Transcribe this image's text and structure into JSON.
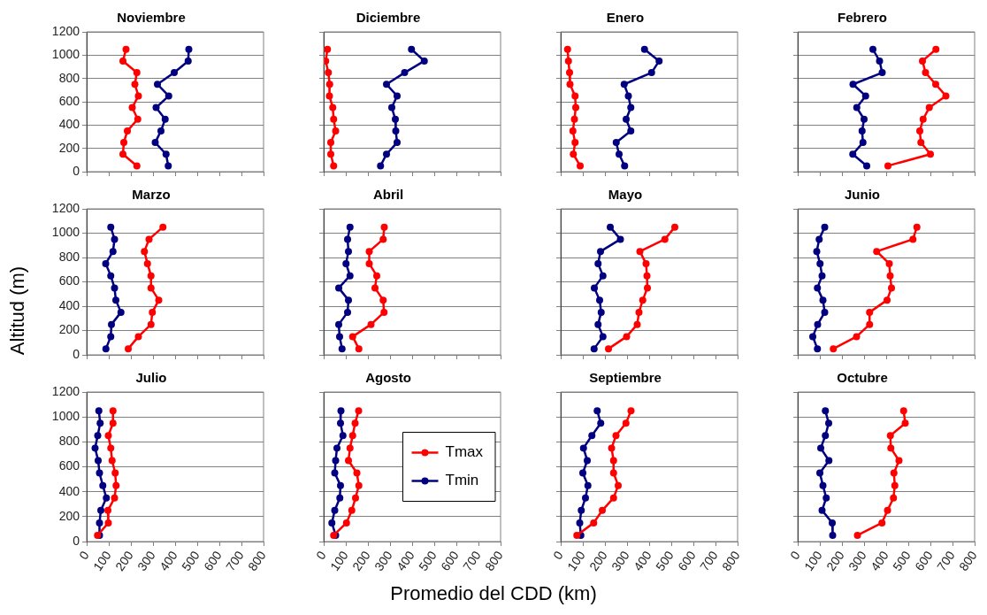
{
  "chart_data": [
    {
      "type": "line",
      "title": "Noviembre",
      "xlim": [
        0,
        800
      ],
      "xticks": [
        0,
        100,
        200,
        300,
        400,
        500,
        600,
        700,
        800
      ],
      "ylim": [
        0,
        1200
      ],
      "yticks": [
        0,
        200,
        400,
        600,
        800,
        1000,
        1200
      ],
      "grid": "y",
      "tick_labels": "y",
      "marker": "circle",
      "line_style": "solid",
      "series": [
        {
          "color": "#ff0000",
          "x": [
            178,
            164,
            227,
            218,
            234,
            206,
            231,
            184,
            168,
            164,
            227
          ],
          "values": [
            1050,
            950,
            850,
            750,
            650,
            550,
            450,
            350,
            250,
            150,
            50
          ]
        },
        {
          "color": "#000080",
          "x": [
            462,
            459,
            396,
            320,
            371,
            314,
            355,
            336,
            310,
            359,
            369
          ],
          "values": [
            1050,
            950,
            850,
            750,
            650,
            550,
            450,
            350,
            250,
            150,
            50
          ]
        }
      ]
    },
    {
      "type": "line",
      "title": "Diciembre",
      "xlim": [
        0,
        800
      ],
      "xticks": [
        0,
        100,
        200,
        300,
        400,
        500,
        600,
        700,
        800
      ],
      "ylim": [
        0,
        1200
      ],
      "yticks": [
        0,
        200,
        400,
        600,
        800,
        1000,
        1200
      ],
      "grid": "y",
      "tick_labels": false,
      "marker": "circle",
      "line_style": "solid",
      "series": [
        {
          "color": "#ff0000",
          "x": [
            17,
            9,
            21,
            27,
            26,
            41,
            45,
            54,
            32,
            32,
            45
          ],
          "values": [
            1050,
            950,
            850,
            750,
            650,
            550,
            450,
            350,
            250,
            150,
            50
          ]
        },
        {
          "color": "#000080",
          "x": [
            397,
            455,
            366,
            284,
            332,
            308,
            324,
            326,
            332,
            284,
            257
          ],
          "values": [
            1050,
            950,
            850,
            750,
            650,
            550,
            450,
            350,
            250,
            150,
            50
          ]
        }
      ]
    },
    {
      "type": "line",
      "title": "Enero",
      "xlim": [
        0,
        800
      ],
      "xticks": [
        0,
        100,
        200,
        300,
        400,
        500,
        600,
        700,
        800
      ],
      "ylim": [
        0,
        1200
      ],
      "yticks": [
        0,
        200,
        400,
        600,
        800,
        1000,
        1200
      ],
      "grid": "y",
      "tick_labels": false,
      "marker": "circle",
      "line_style": "solid",
      "series": [
        {
          "color": "#ff0000",
          "x": [
            31,
            35,
            40,
            42,
            65,
            68,
            62,
            55,
            65,
            57,
            88
          ],
          "values": [
            1050,
            950,
            850,
            750,
            650,
            550,
            450,
            350,
            250,
            150,
            50
          ]
        },
        {
          "color": "#000080",
          "x": [
            379,
            445,
            411,
            287,
            306,
            317,
            296,
            317,
            251,
            264,
            289
          ],
          "values": [
            1050,
            950,
            850,
            750,
            650,
            550,
            450,
            350,
            250,
            150,
            50
          ]
        }
      ]
    },
    {
      "type": "line",
      "title": "Febrero",
      "xlim": [
        0,
        800
      ],
      "xticks": [
        0,
        100,
        200,
        300,
        400,
        500,
        600,
        700,
        800
      ],
      "ylim": [
        0,
        1200
      ],
      "yticks": [
        0,
        200,
        400,
        600,
        800,
        1000,
        1200
      ],
      "grid": "y",
      "tick_labels": false,
      "marker": "circle",
      "line_style": "solid",
      "series": [
        {
          "color": "#ff0000",
          "x": [
            625,
            564,
            578,
            624,
            670,
            595,
            567,
            552,
            557,
            600,
            408
          ],
          "values": [
            1050,
            950,
            850,
            750,
            650,
            550,
            450,
            350,
            250,
            150,
            50
          ]
        },
        {
          "color": "#000080",
          "x": [
            340,
            370,
            382,
            250,
            307,
            267,
            300,
            291,
            295,
            249,
            312
          ],
          "values": [
            1050,
            950,
            850,
            750,
            650,
            550,
            450,
            350,
            250,
            150,
            50
          ]
        }
      ]
    },
    {
      "type": "line",
      "title": "Marzo",
      "ylabel": "Altitud (m)",
      "xlim": [
        0,
        800
      ],
      "xticks": [
        0,
        100,
        200,
        300,
        400,
        500,
        600,
        700,
        800
      ],
      "ylim": [
        0,
        1200
      ],
      "yticks": [
        0,
        200,
        400,
        600,
        800,
        1000,
        1200
      ],
      "grid": "y",
      "tick_labels": "y",
      "marker": "circle",
      "line_style": "solid",
      "series": [
        {
          "color": "#ff0000",
          "x": [
            345,
            282,
            261,
            275,
            291,
            291,
            326,
            297,
            291,
            234,
            188
          ],
          "values": [
            1050,
            950,
            850,
            750,
            650,
            550,
            450,
            350,
            250,
            150,
            50
          ]
        },
        {
          "color": "#000080",
          "x": [
            109,
            126,
            119,
            86,
            109,
            126,
            132,
            155,
            112,
            109,
            87
          ],
          "values": [
            1050,
            950,
            850,
            750,
            650,
            550,
            450,
            350,
            250,
            150,
            50
          ]
        }
      ]
    },
    {
      "type": "line",
      "title": "Abril",
      "xlim": [
        0,
        800
      ],
      "xticks": [
        0,
        100,
        200,
        300,
        400,
        500,
        600,
        700,
        800
      ],
      "ylim": [
        0,
        1200
      ],
      "yticks": [
        0,
        200,
        400,
        600,
        800,
        1000,
        1200
      ],
      "grid": "y",
      "tick_labels": false,
      "marker": "circle",
      "line_style": "solid",
      "series": [
        {
          "color": "#ff0000",
          "x": [
            274,
            269,
            206,
            206,
            240,
            232,
            269,
            273,
            214,
            131,
            159
          ],
          "values": [
            1050,
            950,
            850,
            750,
            650,
            550,
            450,
            350,
            250,
            150,
            50
          ]
        },
        {
          "color": "#000080",
          "x": [
            119,
            108,
            112,
            101,
            119,
            68,
            112,
            108,
            68,
            72,
            83
          ],
          "values": [
            1050,
            950,
            850,
            750,
            650,
            550,
            450,
            350,
            250,
            150,
            50
          ]
        }
      ]
    },
    {
      "type": "line",
      "title": "Mayo",
      "xlim": [
        0,
        800
      ],
      "xticks": [
        0,
        100,
        200,
        300,
        400,
        500,
        600,
        700,
        800
      ],
      "ylim": [
        0,
        1200
      ],
      "yticks": [
        0,
        200,
        400,
        600,
        800,
        1000,
        1200
      ],
      "grid": "y",
      "tick_labels": false,
      "marker": "circle",
      "line_style": "solid",
      "series": [
        {
          "color": "#ff0000",
          "x": [
            516,
            471,
            358,
            386,
            390,
            392,
            371,
            354,
            346,
            298,
            216
          ],
          "values": [
            1050,
            950,
            850,
            750,
            650,
            550,
            450,
            350,
            250,
            150,
            50
          ]
        },
        {
          "color": "#000080",
          "x": [
            224,
            270,
            180,
            169,
            191,
            152,
            176,
            183,
            169,
            191,
            151
          ],
          "values": [
            1050,
            950,
            850,
            750,
            650,
            550,
            450,
            350,
            250,
            150,
            50
          ]
        }
      ]
    },
    {
      "type": "line",
      "title": "Junio",
      "xlim": [
        0,
        800
      ],
      "xticks": [
        0,
        100,
        200,
        300,
        400,
        500,
        600,
        700,
        800
      ],
      "ylim": [
        0,
        1200
      ],
      "yticks": [
        0,
        200,
        400,
        600,
        800,
        1000,
        1200
      ],
      "grid": "y",
      "tick_labels": false,
      "marker": "circle",
      "line_style": "solid",
      "series": [
        {
          "color": "#ff0000",
          "x": [
            539,
            521,
            357,
            414,
            418,
            424,
            404,
            325,
            325,
            266,
            161
          ],
          "values": [
            1050,
            950,
            850,
            750,
            650,
            550,
            450,
            350,
            250,
            150,
            50
          ]
        },
        {
          "color": "#000080",
          "x": [
            122,
            97,
            86,
            101,
            110,
            89,
            114,
            122,
            90,
            68,
            89
          ],
          "values": [
            1050,
            950,
            850,
            750,
            650,
            550,
            450,
            350,
            250,
            150,
            50
          ]
        }
      ]
    },
    {
      "type": "line",
      "title": "Julio",
      "xlim": [
        0,
        800
      ],
      "xticks": [
        0,
        100,
        200,
        300,
        400,
        500,
        600,
        700,
        800
      ],
      "ylim": [
        0,
        1200
      ],
      "yticks": [
        0,
        200,
        400,
        600,
        800,
        1000,
        1200
      ],
      "grid": "y",
      "marker": "circle",
      "line_style": "solid",
      "series": [
        {
          "color": "#ff0000",
          "x": [
            119,
            119,
            98,
            109,
            115,
            129,
            133,
            126,
            96,
            98,
            49
          ],
          "values": [
            1050,
            950,
            850,
            750,
            650,
            550,
            450,
            350,
            250,
            150,
            50
          ]
        },
        {
          "color": "#000080",
          "x": [
            55,
            61,
            50,
            38,
            52,
            58,
            73,
            89,
            64,
            58,
            58
          ],
          "values": [
            1050,
            950,
            850,
            750,
            650,
            550,
            450,
            350,
            250,
            150,
            50
          ]
        }
      ]
    },
    {
      "type": "line",
      "title": "Agosto",
      "xlabel": "Promedio del CDD (km)",
      "xlim": [
        0,
        800
      ],
      "xticks": [
        0,
        100,
        200,
        300,
        400,
        500,
        600,
        700,
        800
      ],
      "ylim": [
        0,
        1200
      ],
      "yticks": [
        0,
        200,
        400,
        600,
        800,
        1000,
        1200
      ],
      "grid": "y",
      "tick_labels": "x",
      "legend": "right",
      "marker": "circle",
      "line_style": "solid",
      "series": [
        {
          "name": "Tmax",
          "color": "#ff0000",
          "x": [
            158,
            142,
            131,
            119,
            112,
            150,
            159,
            144,
            127,
            103,
            45
          ],
          "values": [
            1050,
            950,
            850,
            750,
            650,
            550,
            450,
            350,
            250,
            150,
            50
          ]
        },
        {
          "name": "Tmin",
          "color": "#000080",
          "x": [
            78,
            76,
            87,
            60,
            54,
            50,
            76,
            73,
            50,
            37,
            54
          ],
          "values": [
            1050,
            950,
            850,
            750,
            650,
            550,
            450,
            350,
            250,
            150,
            50
          ]
        }
      ]
    },
    {
      "type": "line",
      "title": "Septiembre",
      "xlim": [
        0,
        800
      ],
      "xticks": [
        0,
        100,
        200,
        300,
        400,
        500,
        600,
        700,
        800
      ],
      "ylim": [
        0,
        1200
      ],
      "yticks": [
        0,
        200,
        400,
        600,
        800,
        1000,
        1200
      ],
      "grid": "y",
      "tick_labels": "x",
      "marker": "circle",
      "line_style": "solid",
      "series": [
        {
          "color": "#ff0000",
          "x": [
            318,
            295,
            250,
            230,
            239,
            239,
            260,
            239,
            188,
            149,
            73
          ],
          "values": [
            1050,
            950,
            850,
            750,
            650,
            550,
            450,
            350,
            250,
            150,
            50
          ]
        },
        {
          "color": "#000080",
          "x": [
            165,
            181,
            141,
            103,
            120,
            100,
            123,
            112,
            93,
            86,
            91
          ],
          "values": [
            1050,
            950,
            850,
            750,
            650,
            550,
            450,
            350,
            250,
            150,
            50
          ]
        }
      ]
    },
    {
      "type": "line",
      "title": "Octubre",
      "xlim": [
        0,
        800
      ],
      "xticks": [
        0,
        100,
        200,
        300,
        400,
        500,
        600,
        700,
        800
      ],
      "ylim": [
        0,
        1200
      ],
      "yticks": [
        0,
        200,
        400,
        600,
        800,
        1000,
        1200
      ],
      "grid": "y",
      "tick_labels": "x",
      "marker": "circle",
      "line_style": "solid",
      "series": [
        {
          "color": "#ff0000",
          "x": [
            479,
            486,
            419,
            421,
            458,
            435,
            439,
            433,
            406,
            381,
            270
          ],
          "values": [
            1050,
            950,
            850,
            750,
            650,
            550,
            450,
            350,
            250,
            150,
            50
          ]
        },
        {
          "color": "#000080",
          "x": [
            125,
            140,
            125,
            104,
            141,
            100,
            114,
            129,
            110,
            156,
            158
          ],
          "values": [
            1050,
            950,
            850,
            750,
            650,
            550,
            450,
            350,
            250,
            150,
            50
          ]
        }
      ]
    }
  ]
}
